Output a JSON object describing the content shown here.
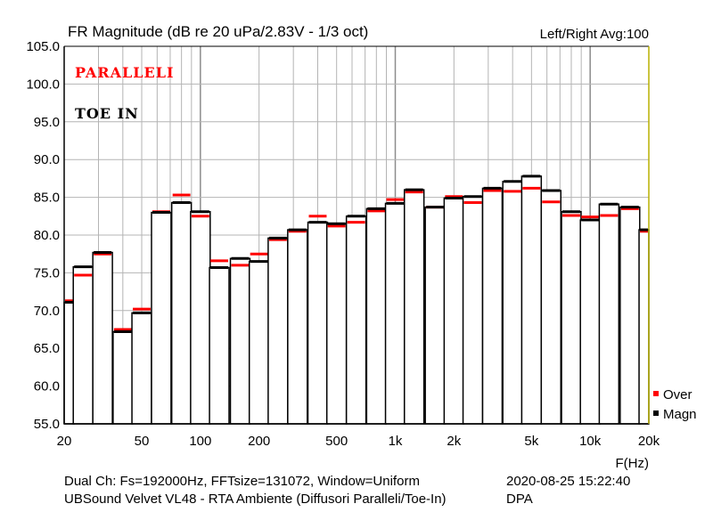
{
  "chart_data": {
    "type": "bar",
    "title": "FR Magnitude (dB re 20 uPa/2.83V - 1/3 oct)",
    "subtitle_right": "Left/Right  Avg:100",
    "xlabel": "F(Hz)",
    "ylabel": "",
    "x_scale": "log",
    "xlim": [
      20,
      20000
    ],
    "ylim": [
      55,
      105
    ],
    "grid": true,
    "legend_position": "bottom-right",
    "x_ticks": [
      {
        "value": 20,
        "label": "20"
      },
      {
        "value": 50,
        "label": "50"
      },
      {
        "value": 100,
        "label": "100"
      },
      {
        "value": 200,
        "label": "200"
      },
      {
        "value": 500,
        "label": "500"
      },
      {
        "value": 1000,
        "label": "1k"
      },
      {
        "value": 2000,
        "label": "2k"
      },
      {
        "value": 5000,
        "label": "5k"
      },
      {
        "value": 10000,
        "label": "10k"
      },
      {
        "value": 20000,
        "label": "20k"
      }
    ],
    "y_ticks": [
      {
        "value": 105,
        "label": "105.0"
      },
      {
        "value": 100,
        "label": "100.0"
      },
      {
        "value": 95,
        "label": "95.0"
      },
      {
        "value": 90,
        "label": "90.0"
      },
      {
        "value": 85,
        "label": "85.0"
      },
      {
        "value": 80,
        "label": "80.0"
      },
      {
        "value": 75,
        "label": "75.0"
      },
      {
        "value": 70,
        "label": "70.0"
      },
      {
        "value": 65,
        "label": "65.0"
      },
      {
        "value": 60,
        "label": "60.0"
      },
      {
        "value": 55,
        "label": "55.0"
      }
    ],
    "bands_hz": [
      20,
      25,
      31.5,
      40,
      50,
      63,
      80,
      100,
      125,
      160,
      200,
      250,
      315,
      400,
      500,
      630,
      800,
      1000,
      1250,
      1600,
      2000,
      2500,
      3150,
      4000,
      5000,
      6300,
      8000,
      10000,
      12500,
      16000,
      20000
    ],
    "series": [
      {
        "name": "Over",
        "color": "#ff0000",
        "values": [
          71.3,
          74.7,
          77.5,
          67.5,
          70.2,
          83.1,
          85.3,
          82.5,
          76.6,
          76.0,
          77.5,
          79.4,
          80.5,
          82.5,
          81.2,
          81.7,
          83.2,
          84.7,
          85.7,
          83.7,
          85.1,
          84.3,
          85.9,
          85.8,
          86.2,
          84.4,
          82.6,
          82.4,
          82.6,
          83.5,
          80.5
        ]
      },
      {
        "name": "Magn",
        "color": "#000000",
        "values": [
          71.1,
          75.8,
          77.7,
          67.2,
          69.7,
          83.0,
          84.3,
          83.1,
          75.7,
          76.9,
          76.5,
          79.6,
          80.7,
          81.7,
          81.5,
          82.5,
          83.5,
          84.2,
          86.0,
          83.7,
          84.9,
          85.1,
          86.2,
          87.1,
          87.8,
          85.9,
          83.1,
          82.0,
          84.1,
          83.7,
          80.7
        ]
      }
    ],
    "annotations": [
      {
        "text": "PARALLELI",
        "color": "#ff0000"
      },
      {
        "text": "TOE IN",
        "color": "#000000"
      }
    ]
  },
  "header": {
    "title": "FR Magnitude (dB re 20 uPa/2.83V - 1/3 oct)",
    "right": "Left/Right  Avg:100"
  },
  "footer": {
    "line1": "Dual Ch: Fs=192000Hz, FFTsize=131072, Window=Uniform",
    "line2": "UBSound Velvet VL48 - RTA Ambiente (Diffusori Paralleli/Toe-In)",
    "date": "2020-08-25  15:22:40",
    "author": "DPA"
  },
  "colors": {
    "grid": "#b4b4b4",
    "grid_major": "#8c8c8c",
    "right_border": "#b8b000"
  }
}
